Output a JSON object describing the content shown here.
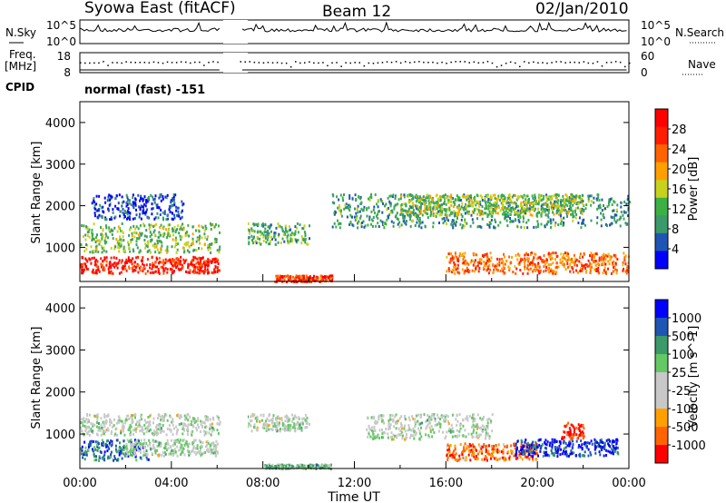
{
  "header": {
    "station": "Syowa East (fitACF)",
    "beam": "Beam 12",
    "date": "02/Jan/2010"
  },
  "nsky": {
    "left_label": "N.Sky",
    "right_label": "N.Search",
    "left_ticks": [
      "10^5",
      "10^0"
    ],
    "right_ticks": [
      "10^5",
      "10^0"
    ]
  },
  "freq": {
    "left_label_1": "Freq.",
    "left_label_2": "[MHz]",
    "right_label": "Nave",
    "left_ticks": [
      "18",
      "8"
    ],
    "right_ticks": [
      "60",
      "0"
    ]
  },
  "cpid": {
    "label": "CPID",
    "mode": "normal (fast) -151"
  },
  "colors": {
    "power_scale": [
      "#0000ff",
      "#1f56b4",
      "#3a9a6a",
      "#3cb044",
      "#c8d21e",
      "#ffa000",
      "#ff6400",
      "#ff1e00",
      "#ff0000"
    ],
    "velocity_scale": [
      "#ff0000",
      "#ff6400",
      "#ffa000",
      "#c8c8c8",
      "#c8c8c8",
      "#64c864",
      "#3a9a6a",
      "#1f56b4",
      "#0000ff"
    ],
    "ground_scatter": "#c0c0c0"
  },
  "chart_data": [
    {
      "type": "heatmap",
      "panel": "power",
      "ylabel": "Slant Range [km]",
      "ylim": [
        180,
        4500
      ],
      "yticks": [
        "1000",
        "2000",
        "3000",
        "4000"
      ],
      "colorbar_label": "Power [dB]",
      "colorbar_ticks": [
        "4",
        "8",
        "12",
        "16",
        "20",
        "24",
        "28"
      ],
      "data_gap_ut": [
        6.1,
        7.0
      ],
      "bands": [
        {
          "t": [
            0.0,
            6.1
          ],
          "r": [
            400,
            800
          ],
          "level": 0.88
        },
        {
          "t": [
            0.0,
            6.1
          ],
          "r": [
            900,
            1600
          ],
          "level": 0.4
        },
        {
          "t": [
            0.5,
            4.5
          ],
          "r": [
            1700,
            2300
          ],
          "level": 0.12
        },
        {
          "t": [
            7.0,
            10.0
          ],
          "r": [
            1100,
            1600
          ],
          "level": 0.35
        },
        {
          "t": [
            8.5,
            11.0
          ],
          "r": [
            200,
            350
          ],
          "level": 0.8
        },
        {
          "t": [
            11.0,
            24.0
          ],
          "r": [
            1500,
            2300
          ],
          "level": 0.3
        },
        {
          "t": [
            16.0,
            24.0
          ],
          "r": [
            400,
            900
          ],
          "level": 0.72
        },
        {
          "t": [
            14.0,
            22.0
          ],
          "r": [
            1800,
            2300
          ],
          "level": 0.45
        }
      ]
    },
    {
      "type": "heatmap",
      "panel": "velocity",
      "ylabel": "Slant Range [km]",
      "ylim": [
        180,
        4500
      ],
      "yticks": [
        "1000",
        "2000",
        "3000",
        "4000"
      ],
      "xticks": [
        "00:00",
        "04:00",
        "08:00",
        "12:00",
        "16:00",
        "20:00",
        "00:00"
      ],
      "xlabel": "Time UT",
      "colorbar_label": "Velocity [m s^-1]",
      "colorbar_ticks": [
        "1000",
        "500",
        "100",
        "25",
        "-25",
        "-100",
        "-500",
        "-1000"
      ],
      "data_gap_ut": [
        6.1,
        7.0
      ],
      "bands": [
        {
          "t": [
            0.0,
            3.0
          ],
          "r": [
            400,
            900
          ],
          "level": 0.78
        },
        {
          "t": [
            0.0,
            6.1
          ],
          "r": [
            1000,
            1500
          ],
          "level": 0.5
        },
        {
          "t": [
            2.0,
            6.0
          ],
          "r": [
            500,
            900
          ],
          "level": 0.5
        },
        {
          "t": [
            7.0,
            10.0
          ],
          "r": [
            1100,
            1500
          ],
          "level": 0.5
        },
        {
          "t": [
            8.0,
            11.0
          ],
          "r": [
            200,
            300
          ],
          "level": 0.62
        },
        {
          "t": [
            12.5,
            18.0
          ],
          "r": [
            900,
            1500
          ],
          "level": 0.5
        },
        {
          "t": [
            16.0,
            20.0
          ],
          "r": [
            400,
            800
          ],
          "level": 0.18
        },
        {
          "t": [
            19.0,
            23.5
          ],
          "r": [
            500,
            900
          ],
          "level": 0.9
        },
        {
          "t": [
            21.0,
            22.0
          ],
          "r": [
            900,
            1300
          ],
          "level": 0.05
        }
      ]
    }
  ]
}
